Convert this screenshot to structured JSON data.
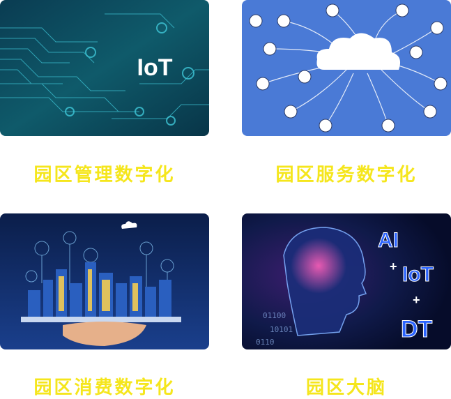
{
  "cards": [
    {
      "caption": "园区管理数字化",
      "image_text": "IoT",
      "icon": "iot-circuit-image"
    },
    {
      "caption": "园区服务数字化",
      "icon": "cloud-devices-image"
    },
    {
      "caption": "园区消费数字化",
      "icon": "smart-city-tablet-image"
    },
    {
      "caption": "园区大脑",
      "image_text": [
        "AI",
        "+",
        "IoT",
        "+",
        "DT"
      ],
      "icon": "ai-brain-head-image"
    }
  ],
  "colors": {
    "caption": "#f5e61c"
  }
}
